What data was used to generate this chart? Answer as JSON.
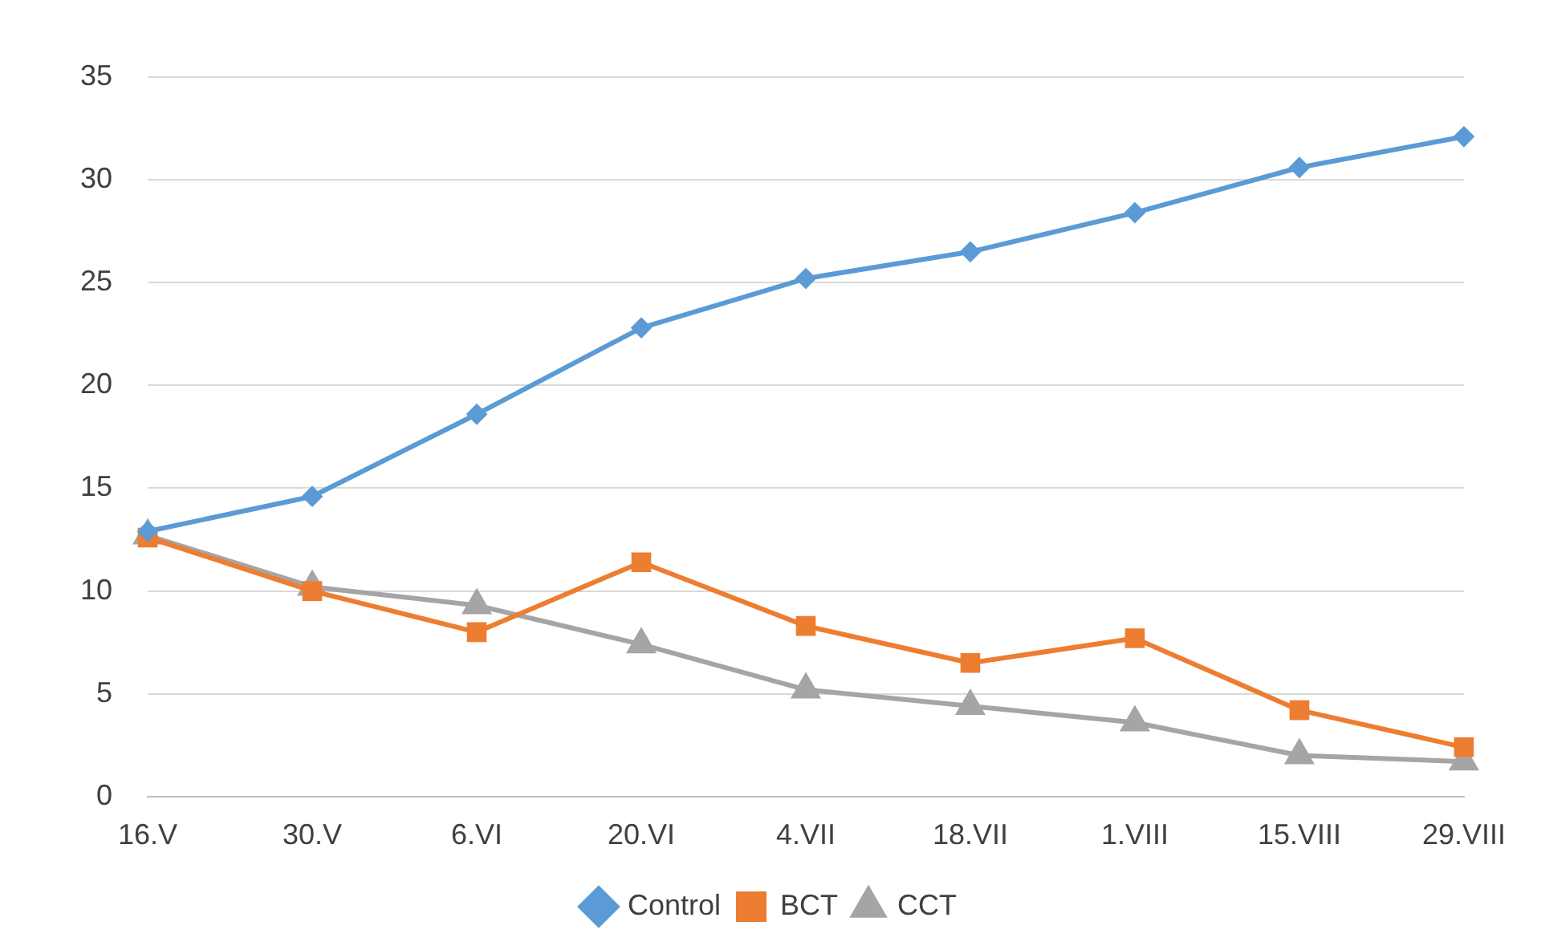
{
  "chart_data": {
    "type": "line",
    "categories": [
      "16.V",
      "30.V",
      "6.VI",
      "20.VI",
      "4.VII",
      "18.VII",
      "1.VIII",
      "15.VIII",
      "29.VIII"
    ],
    "series": [
      {
        "name": "Control",
        "color": "#5b9bd5",
        "marker": "diamond",
        "values": [
          12.9,
          14.6,
          18.6,
          22.8,
          25.2,
          26.5,
          28.4,
          30.6,
          32.1
        ]
      },
      {
        "name": "BCT",
        "color": "#ed7d31",
        "marker": "square",
        "values": [
          12.6,
          10.0,
          8.0,
          11.4,
          8.3,
          6.5,
          7.7,
          4.2,
          2.4
        ]
      },
      {
        "name": "CCT",
        "color": "#a5a5a5",
        "marker": "triangle",
        "values": [
          12.7,
          10.2,
          9.3,
          7.4,
          5.2,
          4.4,
          3.6,
          2.0,
          1.7
        ]
      }
    ],
    "ylim": [
      0,
      35
    ],
    "yticks": [
      0,
      5,
      10,
      15,
      20,
      25,
      30,
      35
    ],
    "grid": "y",
    "legend": "bottom"
  }
}
